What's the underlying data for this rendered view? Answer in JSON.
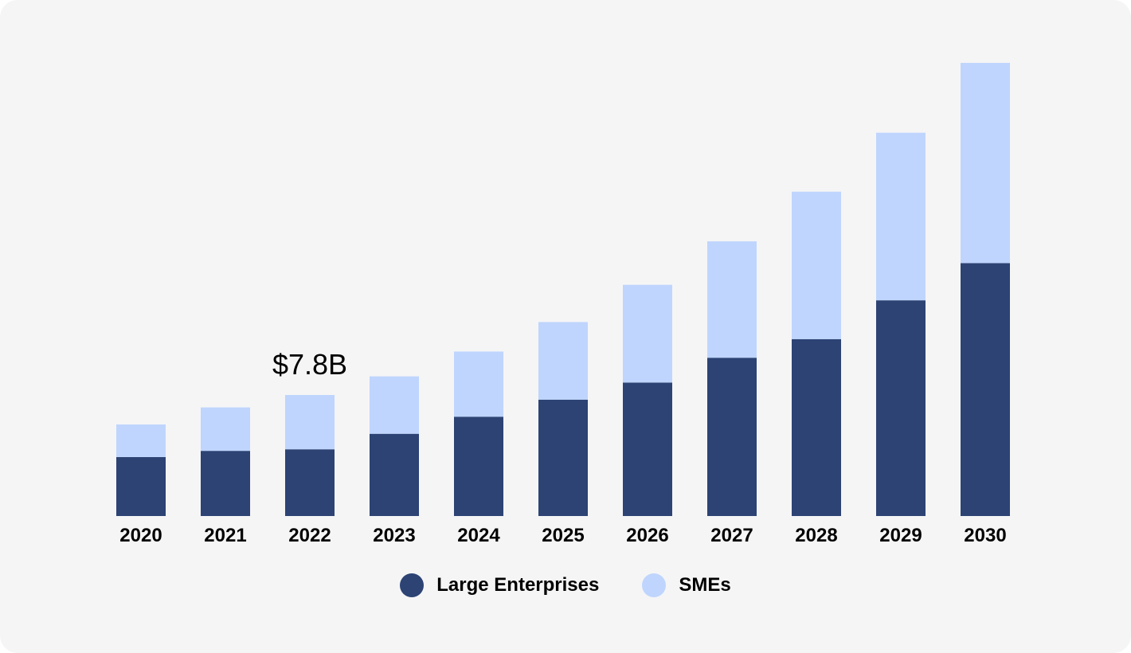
{
  "chart_data": {
    "type": "bar",
    "stacked": true,
    "title": "",
    "xlabel": "",
    "ylabel": "",
    "ylim": [
      0,
      30
    ],
    "unit": "$B",
    "grid": false,
    "legend_placement": "bottom",
    "categories": [
      "2020",
      "2021",
      "2022",
      "2023",
      "2024",
      "2025",
      "2026",
      "2027",
      "2028",
      "2029",
      "2030"
    ],
    "series": [
      {
        "name": "Large Enterprises",
        "color": "#2c4374",
        "values": [
          3.8,
          4.2,
          4.3,
          5.3,
          6.4,
          7.5,
          8.6,
          10.2,
          11.4,
          13.9,
          16.3
        ]
      },
      {
        "name": "SMEs",
        "color": "#bfd5fd",
        "values": [
          2.1,
          2.8,
          3.5,
          3.7,
          4.2,
          5.0,
          6.3,
          7.5,
          9.5,
          10.8,
          12.9
        ]
      }
    ],
    "annotations": [
      {
        "category": "2022",
        "text": "$7.8B"
      }
    ]
  }
}
